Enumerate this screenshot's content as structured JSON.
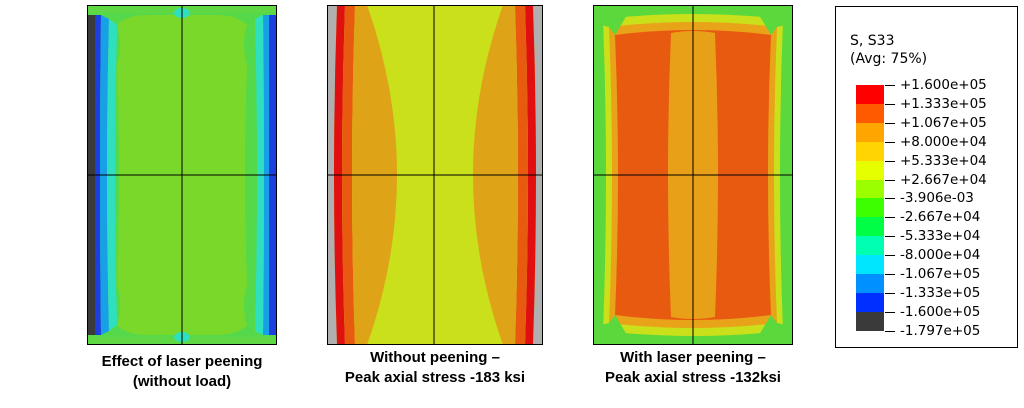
{
  "panels": [
    {
      "caption_line1": "Effect of laser peening",
      "caption_line2": "(without load)",
      "fill_colors": {
        "edge_dark": "#3a3a3a",
        "edge_blue": "#1e3fe0",
        "edge_lightblue": "#17a0e8",
        "edge_teal": "#2ee0c0",
        "core": "#7ad82a",
        "boundary": "#55d84a"
      }
    },
    {
      "caption_line1": "Without peening –",
      "caption_line2": "Peak axial stress -183 ksi",
      "fill_colors": {
        "edge_gray": "#b0b0b0",
        "edge_red": "#e01010",
        "edge_orange": "#e85a10",
        "mid_orange": "#dfa318",
        "core": "#c9e01a"
      }
    },
    {
      "caption_line1": "With laser peening –",
      "caption_line2": "Peak axial stress -132ksi",
      "fill_colors": {
        "outer_green": "#5ad83c",
        "ring_yellow": "#c9e01a",
        "ring_orange": "#e8a318",
        "core": "#e85a10",
        "center_band": "#e8a018"
      }
    }
  ],
  "legend": {
    "title_line1": "S, S33",
    "title_line2": "(Avg: 75%)",
    "labels": [
      "+1.600e+05",
      "+1.333e+05",
      "+1.067e+05",
      "+8.000e+04",
      "+5.333e+04",
      "+2.667e+04",
      "-3.906e-03",
      "-2.667e+04",
      "-5.333e+04",
      "-8.000e+04",
      "-1.067e+05",
      "-1.333e+05",
      "-1.600e+05",
      "-1.797e+05"
    ],
    "colors": [
      "#ff0000",
      "#ff5a00",
      "#ffa500",
      "#ffd400",
      "#e6ff00",
      "#9cff00",
      "#3cff00",
      "#00ff44",
      "#00ffb0",
      "#00e6ff",
      "#0090ff",
      "#0030ff",
      "#3a3a3a"
    ]
  }
}
